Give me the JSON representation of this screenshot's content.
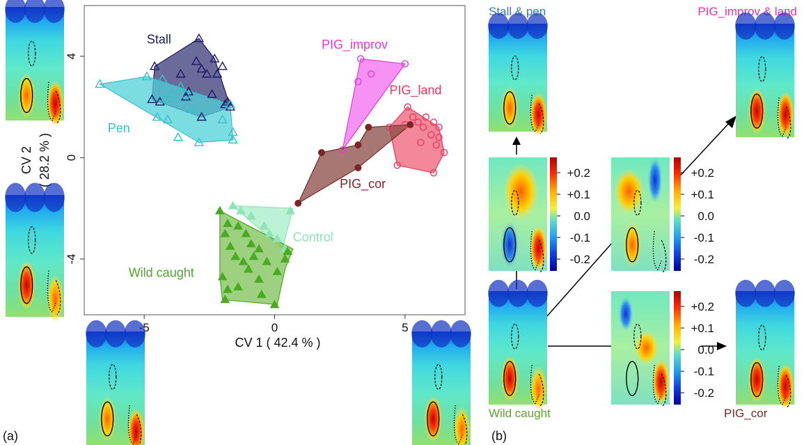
{
  "panel_labels": {
    "a": "(a)",
    "b": "(b)"
  },
  "chart_data": {
    "type": "scatter",
    "xlabel": "CV 1 ( 42.4 % )",
    "ylabel": "CV 2",
    "ylabel_sub": "( 28.2 % )",
    "xlim": [
      -7.3,
      7.3
    ],
    "ylim": [
      -6.2,
      6.0
    ],
    "x_ticks": [
      -5,
      0,
      5
    ],
    "x_tick_labels": [
      "-5",
      "0",
      "5"
    ],
    "y_ticks": [
      -4,
      0,
      4
    ],
    "y_tick_labels": [
      "-4",
      "0",
      "4"
    ],
    "grid": false,
    "series": [
      {
        "name": "Stall",
        "color": "#1b1b6b",
        "fill": "#3a3a78",
        "marker": "triangle-open",
        "label_at": [
          -4.9,
          4.5
        ],
        "points": [
          [
            -4.6,
            3.6
          ],
          [
            -4.7,
            2.3
          ],
          [
            -4.4,
            2.2
          ],
          [
            -3.6,
            3.3
          ],
          [
            -3.4,
            2.4
          ],
          [
            -3.3,
            2.6
          ],
          [
            -3.0,
            3.8
          ],
          [
            -2.9,
            4.7
          ],
          [
            -2.8,
            3.5
          ],
          [
            -2.6,
            3.3
          ],
          [
            -2.4,
            2.5
          ],
          [
            -2.3,
            3.9
          ],
          [
            -2.2,
            3.3
          ],
          [
            -2.0,
            3.6
          ],
          [
            -1.8,
            2.2
          ],
          [
            -1.7,
            2.0
          ],
          [
            -2.8,
            1.6
          ],
          [
            -1.9,
            2.1
          ]
        ],
        "hull": [
          [
            -2.9,
            4.7
          ],
          [
            -4.6,
            3.6
          ],
          [
            -4.7,
            2.3
          ],
          [
            -2.8,
            1.6
          ],
          [
            -1.7,
            2.0
          ],
          [
            -2.3,
            3.9
          ]
        ]
      },
      {
        "name": "Pen",
        "color": "#3bbfc8",
        "fill": "#4fd0d8",
        "marker": "triangle-open",
        "label_at": [
          -6.4,
          1.0
        ],
        "points": [
          [
            -6.7,
            2.9
          ],
          [
            -4.9,
            3.2
          ],
          [
            -4.3,
            3.1
          ],
          [
            -4.2,
            2.3
          ],
          [
            -4.5,
            1.6
          ],
          [
            -4.1,
            1.5
          ],
          [
            -3.9,
            2.5
          ],
          [
            -3.6,
            2.8
          ],
          [
            -3.4,
            2.5
          ],
          [
            -3.2,
            1.9
          ],
          [
            -3.7,
            0.8
          ],
          [
            -2.9,
            0.6
          ],
          [
            -2.0,
            1.5
          ],
          [
            -1.6,
            1.0
          ],
          [
            -1.7,
            2.1
          ],
          [
            -1.6,
            0.7
          ]
        ],
        "hull": [
          [
            -6.7,
            2.9
          ],
          [
            -4.9,
            3.2
          ],
          [
            -1.7,
            2.1
          ],
          [
            -1.6,
            0.7
          ],
          [
            -2.9,
            0.6
          ]
        ]
      },
      {
        "name": "PIG_improv",
        "color": "#e33ad9",
        "fill": "#f36ef0",
        "marker": "circle-open",
        "label_at": [
          1.8,
          4.3
        ],
        "points": [
          [
            2.6,
            0.3
          ],
          [
            3.2,
            3.0
          ],
          [
            3.3,
            3.9
          ],
          [
            3.7,
            3.3
          ],
          [
            5.0,
            3.7
          ]
        ],
        "hull": [
          [
            2.6,
            0.3
          ],
          [
            3.3,
            3.9
          ],
          [
            5.0,
            3.7
          ]
        ]
      },
      {
        "name": "PIG_land",
        "color": "#e83a5c",
        "fill": "#f0607a",
        "marker": "circle-open",
        "label_at": [
          4.4,
          2.5
        ],
        "points": [
          [
            4.4,
            1.2
          ],
          [
            4.7,
            -0.3
          ],
          [
            5.0,
            1.3
          ],
          [
            5.1,
            2.0
          ],
          [
            5.3,
            1.6
          ],
          [
            5.5,
            1.4
          ],
          [
            5.6,
            0.6
          ],
          [
            5.7,
            1.2
          ],
          [
            5.8,
            1.6
          ],
          [
            6.0,
            0.9
          ],
          [
            6.1,
            1.4
          ],
          [
            6.2,
            0.5
          ],
          [
            6.3,
            1.2
          ],
          [
            6.3,
            0.8
          ],
          [
            6.1,
            -0.6
          ],
          [
            6.5,
            0.2
          ]
        ],
        "hull": [
          [
            5.1,
            2.0
          ],
          [
            6.3,
            1.2
          ],
          [
            6.5,
            0.2
          ],
          [
            6.1,
            -0.6
          ],
          [
            4.7,
            -0.3
          ],
          [
            4.4,
            1.2
          ]
        ]
      },
      {
        "name": "PIG_cor",
        "color": "#7a2626",
        "fill": "#8a4a44",
        "marker": "circle-filled",
        "label_at": [
          2.5,
          -1.2
        ],
        "points": [
          [
            0.9,
            -1.8
          ],
          [
            1.8,
            0.2
          ],
          [
            3.2,
            0.5
          ],
          [
            3.6,
            1.2
          ],
          [
            3.2,
            -0.4
          ],
          [
            5.2,
            1.3
          ]
        ],
        "hull": [
          [
            0.9,
            -1.8
          ],
          [
            1.8,
            0.2
          ],
          [
            3.2,
            0.5
          ],
          [
            3.6,
            1.2
          ],
          [
            5.2,
            1.3
          ],
          [
            3.2,
            -0.4
          ]
        ]
      },
      {
        "name": "Control",
        "color": "#8fe3b8",
        "fill": "#a4ecc6",
        "marker": "triangle-filled",
        "label_at": [
          0.7,
          -3.3
        ],
        "points": [
          [
            -1.6,
            -1.9
          ],
          [
            -1.3,
            -2.1
          ],
          [
            -0.9,
            -2.3
          ],
          [
            -0.4,
            -2.7
          ],
          [
            -0.2,
            -3.0
          ],
          [
            0.1,
            -3.2
          ],
          [
            0.4,
            -3.6
          ],
          [
            0.6,
            -2.1
          ]
        ],
        "hull": [
          [
            -1.6,
            -1.9
          ],
          [
            0.7,
            -2.0
          ],
          [
            0.3,
            -3.6
          ]
        ]
      },
      {
        "name": "Wild caught",
        "color": "#4aaa22",
        "fill": "#7ec254",
        "marker": "triangle-filled",
        "label_at": [
          -5.6,
          -4.7
        ],
        "points": [
          [
            -2.1,
            -2.1
          ],
          [
            -1.8,
            -2.6
          ],
          [
            -1.9,
            -3.0
          ],
          [
            -1.7,
            -3.5
          ],
          [
            -1.4,
            -2.7
          ],
          [
            -1.1,
            -3.0
          ],
          [
            -0.9,
            -3.4
          ],
          [
            -0.6,
            -3.6
          ],
          [
            -1.5,
            -3.9
          ],
          [
            -1.2,
            -4.1
          ],
          [
            -1.0,
            -4.4
          ],
          [
            -0.8,
            -3.9
          ],
          [
            -0.3,
            -4.1
          ],
          [
            0.1,
            -4.5
          ],
          [
            0.4,
            -4.0
          ],
          [
            -0.6,
            -4.8
          ],
          [
            -2.0,
            -4.7
          ],
          [
            -1.8,
            -5.2
          ],
          [
            -1.4,
            -5.1
          ],
          [
            -0.5,
            -5.4
          ],
          [
            -1.9,
            -5.6
          ],
          [
            0.0,
            -5.8
          ],
          [
            0.5,
            -3.7
          ]
        ],
        "hull": [
          [
            -2.1,
            -2.1
          ],
          [
            0.7,
            -3.6
          ],
          [
            0.4,
            -4.4
          ],
          [
            0.1,
            -5.8
          ],
          [
            -2.0,
            -5.6
          ],
          [
            -2.1,
            -4.7
          ]
        ]
      }
    ]
  },
  "tick_scale": [
    "+0.2",
    "+0.1",
    "0.0",
    "-0.1",
    "-0.2"
  ],
  "panel_b": {
    "stall_pen": "Stall & pen",
    "pig_improv_land": "PIG_improv & land",
    "wild_caught": "Wild caught",
    "pig_cor": "PIG_cor"
  },
  "colors": {
    "stall_pen_label": "#2f7fb0",
    "pig_improv_land_label": "#e0389e",
    "wild_caught_label": "#5aa82a",
    "pig_cor_label": "#7a2a2a"
  }
}
